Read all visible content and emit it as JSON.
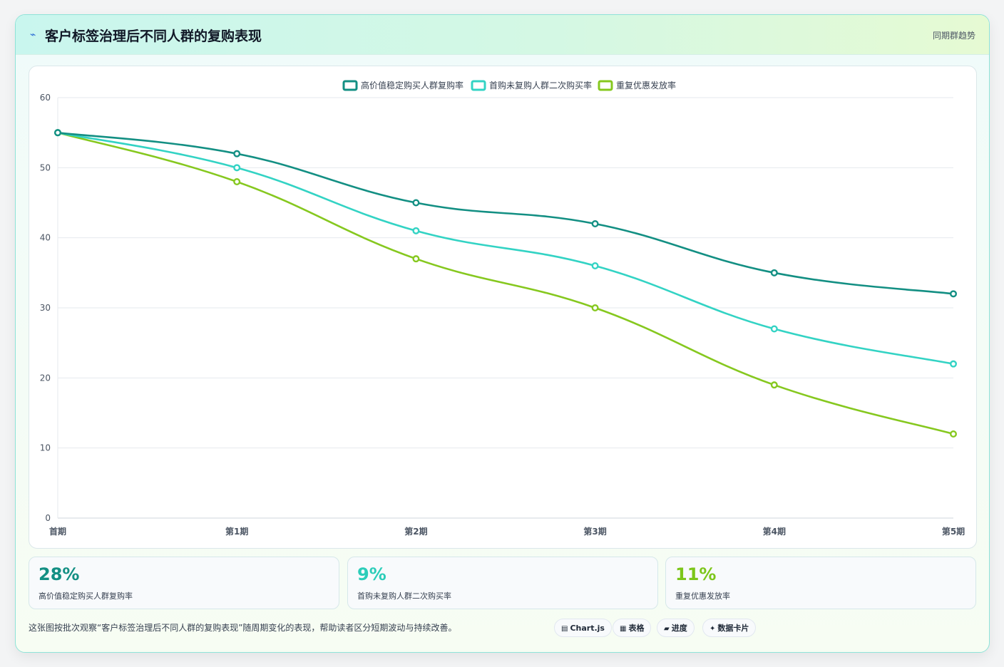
{
  "header": {
    "icon": "lightning-icon",
    "title": "客户标签治理后不同人群的复购表现",
    "subtitle": "同期群趋势"
  },
  "colors": {
    "series1": "#138f83",
    "series2": "#33d3c4",
    "series3": "#86c81f"
  },
  "chart_data": {
    "type": "line",
    "categories": [
      "首期",
      "第1期",
      "第2期",
      "第3期",
      "第4期",
      "第5期"
    ],
    "ylim": [
      0,
      60
    ],
    "yticks": [
      0,
      10,
      20,
      30,
      40,
      50,
      60
    ],
    "grid": true,
    "legend": "top-center",
    "series": [
      {
        "name": "高价值稳定购买人群复购率",
        "color": "#138f83",
        "values": [
          55,
          52,
          45,
          42,
          35,
          32
        ]
      },
      {
        "name": "首购未复购人群二次购买率",
        "color": "#33d3c4",
        "values": [
          55,
          50,
          41,
          36,
          27,
          22
        ]
      },
      {
        "name": "重复优惠发放率",
        "color": "#86c81f",
        "values": [
          55,
          48,
          37,
          30,
          19,
          12
        ]
      }
    ]
  },
  "kpis": [
    {
      "value": "28%",
      "label": "高价值稳定购买人群复购率",
      "color": "#138f83"
    },
    {
      "value": "9%",
      "label": "首购未复购人群二次购买率",
      "color": "#2ccdb9"
    },
    {
      "value": "11%",
      "label": "重复优惠发放率",
      "color": "#7cc61a"
    }
  ],
  "footer": {
    "note": "这张图按批次观察“客户标签治理后不同人群的复购表现”随周期变化的表现，帮助读者区分短期波动与持续改善。",
    "tags": [
      {
        "icon": "chart-icon",
        "glyph": "▤",
        "label": "Chart.js"
      },
      {
        "icon": "table-icon",
        "glyph": "▦",
        "label": "表格"
      },
      {
        "icon": "progress-icon",
        "glyph": "▰",
        "label": "进度"
      },
      {
        "icon": "sparkle-icon",
        "glyph": "✦",
        "label": "数据卡片"
      }
    ]
  }
}
